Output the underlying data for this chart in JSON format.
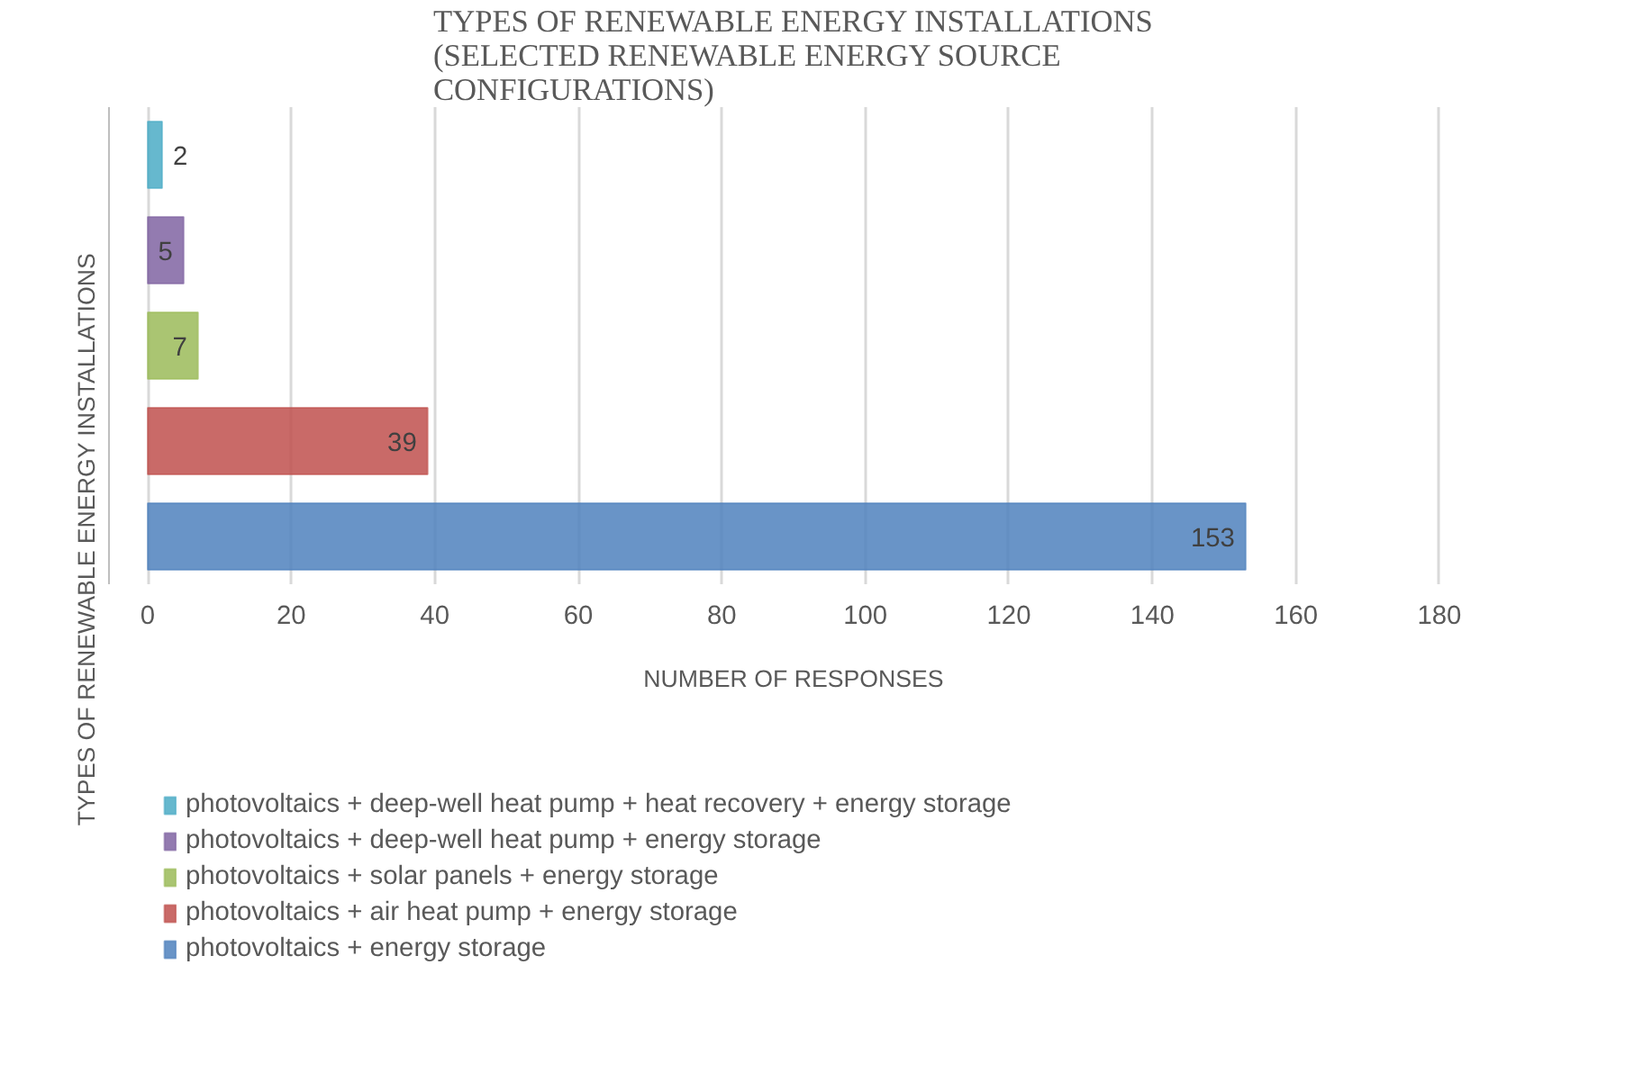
{
  "chart_data": {
    "type": "bar",
    "orientation": "horizontal",
    "title": "TYPES OF RENEWABLE ENERGY INSTALLATIONS (SELECTED RENEWABLE ENERGY SOURCE CONFIGURATIONS)",
    "xlabel": "NUMBER OF RESPONSES",
    "ylabel": "TYPES OF RENEWABLE ENERGY INSTALLATIONS",
    "categories": [
      null,
      null,
      null,
      null,
      null
    ],
    "series": [
      {
        "name": "photovoltaics + deep-well heat pump + heat recovery + energy storage",
        "color": "#4bacc6",
        "values": [
          2,
          null,
          null,
          null,
          null
        ]
      },
      {
        "name": "photovoltaics + deep-well heat pump + energy storage",
        "color": "#8064a2",
        "values": [
          null,
          5,
          null,
          null,
          null
        ]
      },
      {
        "name": "photovoltaics + solar panels + energy storage",
        "color": "#9bbb59",
        "values": [
          null,
          null,
          7,
          null,
          null
        ]
      },
      {
        "name": "photovoltaics + air heat pump + energy storage",
        "color": "#c0504d",
        "values": [
          null,
          null,
          null,
          39,
          null
        ]
      },
      {
        "name": "photovoltaics + energy storage",
        "color": "#4f81bd",
        "values": [
          null,
          null,
          null,
          null,
          153
        ]
      }
    ],
    "xlim": [
      0,
      180
    ],
    "xticks": [
      0,
      20,
      40,
      60,
      80,
      100,
      120,
      140,
      160,
      180
    ],
    "data_labels": true,
    "grid": "x",
    "legend": "bottom",
    "tick_labels": "x"
  }
}
